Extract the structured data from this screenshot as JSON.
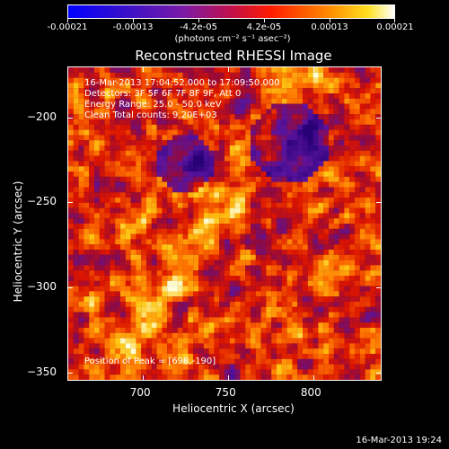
{
  "chart_data": {
    "type": "heatmap",
    "title": "Reconstructed RHESSI Image",
    "xlabel": "Heliocentric X (arcsec)",
    "ylabel": "Heliocentric Y (arcsec)",
    "xlim": [
      656,
      840
    ],
    "ylim": [
      -355,
      -170
    ],
    "x_ticks": [
      700,
      750,
      800
    ],
    "y_ticks": [
      -200,
      -250,
      -300,
      -350
    ],
    "colorbar": {
      "units": "(photons cm⁻² s⁻¹ asec⁻²)",
      "range": [
        -0.00021,
        0.00021
      ],
      "tick_labels": [
        "-0.00021",
        "-0.00013",
        "-4.2e-05",
        "4.2e-05",
        "0.00013",
        "0.00021"
      ]
    },
    "annotations": [
      "16-Mar-2013 17:04:52.000 to 17:09:50.000",
      "Detectors: 3F 5F 6F 7F 8F 9F, Att 0",
      "Energy Range: 25.0 - 50.0 keV",
      "Clean       Total counts: 9.20E+03"
    ],
    "peak_label": "Position of Peak = [698,-190]",
    "peak_position": [
      698,
      -190
    ]
  },
  "timestamp": "16-Mar-2013 19:24"
}
